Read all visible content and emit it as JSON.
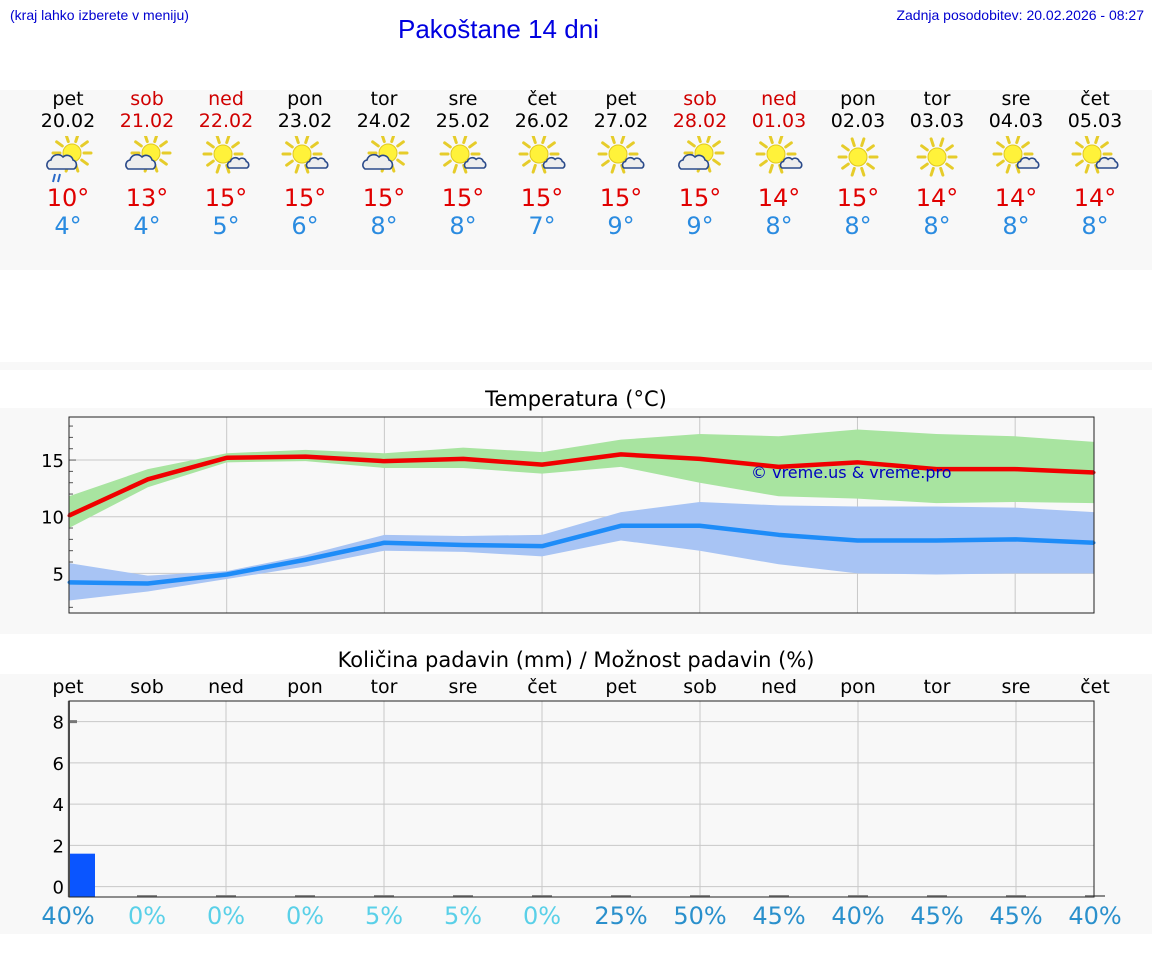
{
  "header": {
    "hint": "(kraj lahko izberete v meniju)",
    "title": "Pakoštane 14 dni",
    "updated": "Zadnja posodobitev: 20.02.2026 - 08:27"
  },
  "days": [
    {
      "name": "pet",
      "date": "20.02",
      "weekend": false,
      "icon": "sun-cloud-rain-icon",
      "max": "10°",
      "min": "4°"
    },
    {
      "name": "sob",
      "date": "21.02",
      "weekend": true,
      "icon": "sun-cloud-icon",
      "max": "13°",
      "min": "4°"
    },
    {
      "name": "ned",
      "date": "22.02",
      "weekend": true,
      "icon": "sun-small-cloud-icon",
      "max": "15°",
      "min": "5°"
    },
    {
      "name": "pon",
      "date": "23.02",
      "weekend": false,
      "icon": "sun-small-cloud-icon",
      "max": "15°",
      "min": "6°"
    },
    {
      "name": "tor",
      "date": "24.02",
      "weekend": false,
      "icon": "sun-cloud-icon",
      "max": "15°",
      "min": "8°"
    },
    {
      "name": "sre",
      "date": "25.02",
      "weekend": false,
      "icon": "sun-small-cloud-icon",
      "max": "15°",
      "min": "8°"
    },
    {
      "name": "čet",
      "date": "26.02",
      "weekend": false,
      "icon": "sun-small-cloud-icon",
      "max": "15°",
      "min": "7°"
    },
    {
      "name": "pet",
      "date": "27.02",
      "weekend": false,
      "icon": "sun-small-cloud-icon",
      "max": "15°",
      "min": "9°"
    },
    {
      "name": "sob",
      "date": "28.02",
      "weekend": true,
      "icon": "sun-cloud-icon",
      "max": "15°",
      "min": "9°"
    },
    {
      "name": "ned",
      "date": "01.03",
      "weekend": true,
      "icon": "sun-small-cloud-icon",
      "max": "14°",
      "min": "8°"
    },
    {
      "name": "pon",
      "date": "02.03",
      "weekend": false,
      "icon": "sun-icon",
      "max": "15°",
      "min": "8°"
    },
    {
      "name": "tor",
      "date": "03.03",
      "weekend": false,
      "icon": "sun-icon",
      "max": "14°",
      "min": "8°"
    },
    {
      "name": "sre",
      "date": "04.03",
      "weekend": false,
      "icon": "sun-small-cloud-icon",
      "max": "14°",
      "min": "8°"
    },
    {
      "name": "čet",
      "date": "05.03",
      "weekend": false,
      "icon": "sun-small-cloud-icon",
      "max": "14°",
      "min": "8°"
    }
  ],
  "colors": {
    "weekend": "#d00000",
    "max_line": "#f00000",
    "max_band": "#a8e4a0",
    "min_line": "#1e8cf8",
    "min_band": "#a8c4f4",
    "rain_bar": "#0a55ff",
    "watermark": "#0000c0"
  },
  "chart_data": [
    {
      "type": "line",
      "title": "Temperatura (°C)",
      "watermark": "© vreme.us & vreme.pro",
      "x": [
        0,
        0.5,
        1,
        1.5,
        2,
        2.5,
        3,
        3.5,
        4,
        4.5,
        5,
        5.5,
        6,
        6.5,
        7,
        7.5,
        8,
        8.5,
        9,
        9.5,
        10,
        10.5,
        11,
        11.5,
        12,
        12.5,
        13
      ],
      "xlim": [
        0,
        13
      ],
      "ylim": [
        1.5,
        18.8
      ],
      "yticks": [
        5,
        10,
        15
      ],
      "ytick_labels": [
        "5",
        "10",
        "15"
      ],
      "series": [
        {
          "name": "max",
          "values": [
            10.1,
            13.3,
            15.2,
            15.3,
            14.9,
            15.1,
            14.6,
            15.5,
            15.1,
            14.4,
            14.8,
            14.2,
            14.2,
            13.9
          ],
          "x": [
            0,
            1,
            2,
            3,
            4,
            5,
            6,
            7,
            8,
            9,
            10,
            11,
            12,
            13
          ],
          "band_low": [
            9.0,
            12.6,
            14.8,
            14.9,
            14.3,
            14.3,
            13.8,
            14.4,
            13.0,
            11.8,
            11.6,
            11.2,
            11.3,
            11.2
          ],
          "band_high": [
            11.8,
            14.2,
            15.6,
            15.9,
            15.6,
            16.1,
            15.7,
            16.8,
            17.3,
            17.1,
            17.7,
            17.3,
            17.1,
            16.6
          ]
        },
        {
          "name": "min",
          "values": [
            4.2,
            4.1,
            4.9,
            6.2,
            7.7,
            7.5,
            7.4,
            9.2,
            9.2,
            8.4,
            7.9,
            7.9,
            8.0,
            7.7
          ],
          "x": [
            0,
            1,
            2,
            3,
            4,
            5,
            6,
            7,
            8,
            9,
            10,
            11,
            12,
            13
          ],
          "band_low": [
            2.6,
            3.4,
            4.5,
            5.6,
            7.0,
            6.9,
            6.5,
            7.9,
            7.0,
            5.8,
            5.0,
            4.9,
            5.0,
            5.0
          ],
          "band_high": [
            5.9,
            4.8,
            5.2,
            6.6,
            8.4,
            8.3,
            8.4,
            10.4,
            11.3,
            11.0,
            10.9,
            10.9,
            10.8,
            10.4
          ]
        }
      ]
    },
    {
      "type": "bar",
      "title": "Količina padavin (mm) / Možnost padavin (%)",
      "categories": [
        "pet",
        "sob",
        "ned",
        "pon",
        "tor",
        "sre",
        "čet",
        "pet",
        "sob",
        "ned",
        "pon",
        "tor",
        "sre",
        "čet"
      ],
      "values": [
        1.6,
        0,
        0,
        0,
        0,
        0,
        0,
        0,
        0,
        0,
        0,
        0,
        0,
        0
      ],
      "ylim": [
        -0.5,
        9
      ],
      "yticks": [
        0,
        2,
        4,
        6,
        8
      ],
      "ytick_labels": [
        "0",
        "2",
        "4",
        "6",
        "8"
      ],
      "probability": [
        "40%",
        "0%",
        "0%",
        "0%",
        "5%",
        "5%",
        "0%",
        "25%",
        "50%",
        "45%",
        "40%",
        "45%",
        "45%",
        "40%"
      ],
      "probability_values": [
        40,
        0,
        0,
        0,
        5,
        5,
        0,
        25,
        50,
        45,
        40,
        45,
        45,
        40
      ],
      "ylabel": "",
      "xlabel": ""
    }
  ]
}
